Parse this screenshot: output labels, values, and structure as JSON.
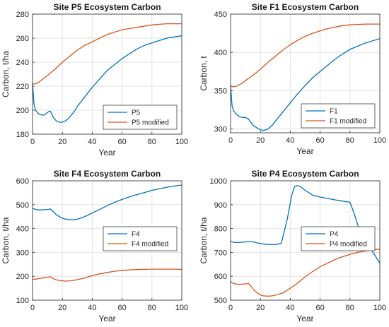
{
  "chart_data": [
    {
      "type": "line",
      "title": "Site P5 Ecosystem Carbon",
      "xlabel": "Year",
      "ylabel": "Carbon, t/ha",
      "xlim": [
        0,
        100
      ],
      "ylim": [
        180,
        280
      ],
      "xticks": [
        0,
        20,
        40,
        60,
        80,
        100
      ],
      "yticks": [
        180,
        200,
        220,
        240,
        260,
        280
      ],
      "grid": true,
      "legend": "bottom-right",
      "series": [
        {
          "name": "P5",
          "color": "#0072BD",
          "x": [
            0,
            1,
            2,
            4,
            6,
            8,
            10,
            11,
            12,
            14,
            16,
            18,
            20,
            22,
            24,
            26,
            28,
            30,
            35,
            40,
            45,
            50,
            55,
            60,
            65,
            70,
            75,
            80,
            85,
            90,
            95,
            100
          ],
          "y": [
            222,
            205,
            200,
            197,
            196,
            196,
            198,
            199,
            199,
            194,
            191,
            190,
            190,
            191,
            193,
            196,
            199,
            203,
            211,
            219,
            226,
            233,
            238,
            243,
            247,
            251,
            254,
            256,
            258,
            260,
            261,
            262
          ]
        },
        {
          "name": "P5 modified",
          "color": "#D95319",
          "x": [
            0,
            2,
            4,
            6,
            8,
            10,
            12,
            15,
            20,
            25,
            30,
            35,
            40,
            45,
            50,
            55,
            60,
            65,
            70,
            75,
            80,
            85,
            90,
            95,
            100
          ],
          "y": [
            222,
            222,
            223,
            225,
            227,
            229,
            231,
            234,
            240,
            245,
            250,
            254,
            257,
            260,
            263,
            265,
            267,
            268,
            269,
            270,
            271,
            271.5,
            272,
            272,
            272
          ]
        }
      ]
    },
    {
      "type": "line",
      "title": "Site F1 Ecosystem Carbon",
      "xlabel": "Year",
      "ylabel": "Carbon, t",
      "xlim": [
        0,
        100
      ],
      "ylim": [
        295,
        450
      ],
      "xticks": [
        0,
        20,
        40,
        60,
        80,
        100
      ],
      "yticks": [
        300,
        350,
        400,
        450
      ],
      "grid": true,
      "legend": "bottom-right",
      "series": [
        {
          "name": "F1",
          "color": "#0072BD",
          "x": [
            0,
            1,
            2,
            4,
            6,
            8,
            10,
            12,
            13,
            15,
            18,
            20,
            22,
            25,
            28,
            30,
            35,
            40,
            45,
            50,
            55,
            60,
            65,
            70,
            75,
            80,
            85,
            90,
            95,
            100
          ],
          "y": [
            357,
            330,
            324,
            319,
            316,
            315,
            315,
            313,
            310,
            305,
            301,
            299,
            298,
            300,
            305,
            310,
            322,
            334,
            346,
            357,
            367,
            375,
            383,
            391,
            398,
            404,
            408,
            412,
            415,
            418
          ]
        },
        {
          "name": "F1 modified",
          "color": "#D95319",
          "x": [
            0,
            2,
            4,
            6,
            8,
            10,
            12,
            15,
            20,
            25,
            30,
            35,
            40,
            45,
            50,
            55,
            60,
            65,
            70,
            75,
            80,
            85,
            90,
            95,
            100
          ],
          "y": [
            356,
            355,
            356,
            358,
            360,
            363,
            366,
            370,
            378,
            387,
            395,
            403,
            410,
            416,
            421,
            425,
            428,
            431,
            433,
            435,
            436,
            436.5,
            437,
            437,
            437
          ]
        }
      ]
    },
    {
      "type": "line",
      "title": "Site F4 Ecosystem Carbon",
      "xlabel": "Year",
      "ylabel": "Carbon, t/ha",
      "xlim": [
        0,
        100
      ],
      "ylim": [
        100,
        600
      ],
      "xticks": [
        0,
        20,
        40,
        60,
        80,
        100
      ],
      "yticks": [
        100,
        200,
        300,
        400,
        500,
        600
      ],
      "grid": true,
      "legend": "center-right",
      "series": [
        {
          "name": "F4",
          "color": "#0072BD",
          "x": [
            0,
            2,
            4,
            6,
            8,
            10,
            12,
            14,
            16,
            18,
            20,
            22,
            25,
            28,
            30,
            35,
            40,
            45,
            50,
            55,
            60,
            65,
            70,
            75,
            80,
            85,
            90,
            95,
            100
          ],
          "y": [
            485,
            480,
            478,
            478,
            479,
            480,
            482,
            470,
            458,
            450,
            443,
            440,
            437,
            437,
            439,
            450,
            465,
            480,
            496,
            510,
            522,
            533,
            542,
            551,
            560,
            567,
            573,
            578,
            582
          ]
        },
        {
          "name": "F4 modified",
          "color": "#D95319",
          "x": [
            0,
            2,
            4,
            6,
            8,
            10,
            12,
            14,
            16,
            18,
            20,
            22,
            25,
            28,
            30,
            35,
            40,
            45,
            50,
            55,
            60,
            65,
            70,
            75,
            80,
            85,
            90,
            95,
            100
          ],
          "y": [
            187,
            188,
            190,
            192,
            194,
            196,
            198,
            190,
            185,
            182,
            181,
            180,
            181,
            183,
            186,
            193,
            203,
            210,
            216,
            221,
            225,
            227,
            228,
            229,
            230,
            230,
            230,
            230,
            229
          ]
        }
      ]
    },
    {
      "type": "line",
      "title": "Site P4 Ecosystem Carbon",
      "xlabel": "Year",
      "ylabel": "Carbon, t/ha",
      "xlim": [
        0,
        100
      ],
      "ylim": [
        500,
        1000
      ],
      "xticks": [
        0,
        20,
        40,
        60,
        80,
        100
      ],
      "yticks": [
        500,
        600,
        700,
        800,
        900,
        1000
      ],
      "grid": true,
      "legend": "center-right",
      "series": [
        {
          "name": "P4",
          "color": "#0072BD",
          "x": [
            0,
            2,
            5,
            10,
            13,
            15,
            20,
            25,
            30,
            34,
            38,
            41,
            43,
            45,
            47,
            50,
            55,
            60,
            65,
            70,
            75,
            80,
            83,
            86,
            90,
            94,
            97,
            100
          ],
          "y": [
            748,
            742,
            741,
            744,
            746,
            744,
            737,
            733,
            733,
            738,
            840,
            940,
            977,
            980,
            975,
            960,
            940,
            932,
            926,
            920,
            915,
            910,
            860,
            800,
            760,
            715,
            685,
            655
          ]
        },
        {
          "name": "P4 modified",
          "color": "#D95319",
          "x": [
            0,
            2,
            5,
            8,
            10,
            12,
            14,
            16,
            18,
            20,
            22,
            25,
            28,
            30,
            35,
            40,
            45,
            50,
            55,
            60,
            65,
            70,
            75,
            80,
            85,
            90,
            95,
            100
          ],
          "y": [
            578,
            570,
            566,
            567,
            568,
            570,
            556,
            540,
            530,
            522,
            518,
            517,
            518,
            521,
            530,
            550,
            572,
            598,
            620,
            640,
            655,
            670,
            682,
            692,
            700,
            706,
            711,
            714
          ]
        }
      ]
    }
  ]
}
